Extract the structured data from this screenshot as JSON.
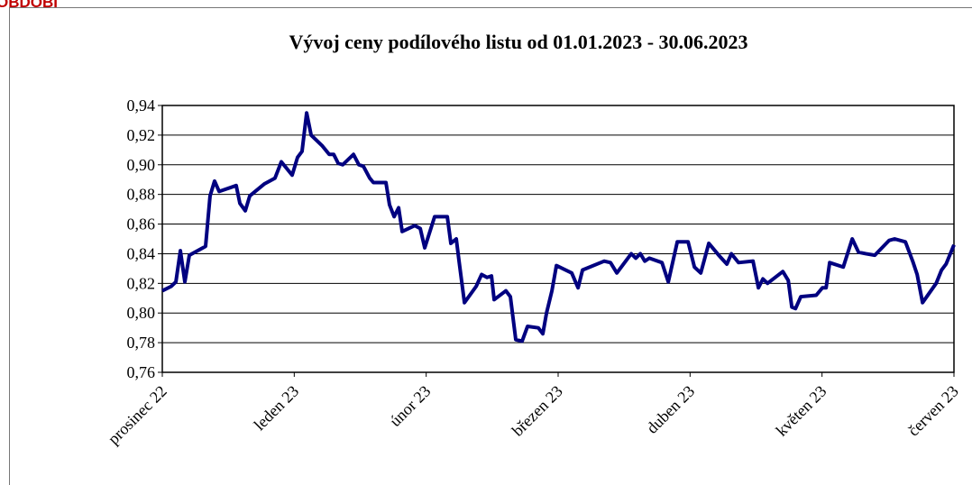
{
  "header": "OBDOBÍ",
  "chart_data": {
    "type": "line",
    "title": "Vývoj ceny podílového listu od 01.01.2023 - 30.06.2023",
    "xlim": [
      0,
      6
    ],
    "xticks": [
      {
        "value": 0,
        "label": "prosinec 22"
      },
      {
        "value": 1,
        "label": "leden 23"
      },
      {
        "value": 2,
        "label": "únor 23"
      },
      {
        "value": 3,
        "label": "březen 23"
      },
      {
        "value": 4,
        "label": "duben 23"
      },
      {
        "value": 5,
        "label": "květen 23"
      },
      {
        "value": 6,
        "label": "červen 23"
      }
    ],
    "ylim": [
      0.76,
      0.94
    ],
    "yticks": [
      {
        "value": 0.76,
        "label": "0,76"
      },
      {
        "value": 0.78,
        "label": "0,78"
      },
      {
        "value": 0.8,
        "label": "0,80"
      },
      {
        "value": 0.82,
        "label": "0,82"
      },
      {
        "value": 0.84,
        "label": "0,84"
      },
      {
        "value": 0.86,
        "label": "0,86"
      },
      {
        "value": 0.88,
        "label": "0,88"
      },
      {
        "value": 0.9,
        "label": "0,90"
      },
      {
        "value": 0.92,
        "label": "0,92"
      },
      {
        "value": 0.94,
        "label": "0,94"
      }
    ],
    "grid": true,
    "color": "#000080",
    "x": [
      0,
      0.068,
      0.103,
      0.137,
      0.171,
      0.205,
      0.328,
      0.362,
      0.396,
      0.431,
      0.56,
      0.588,
      0.629,
      0.663,
      0.772,
      0.813,
      0.854,
      0.902,
      0.984,
      1.025,
      1.059,
      1.094,
      1.128,
      1.21,
      1.265,
      1.299,
      1.333,
      1.367,
      1.449,
      1.49,
      1.524,
      1.572,
      1.6,
      1.695,
      1.722,
      1.757,
      1.791,
      1.818,
      1.914,
      1.955,
      1.989,
      2.064,
      2.16,
      2.187,
      2.228,
      2.249,
      2.29,
      2.379,
      2.42,
      2.461,
      2.495,
      2.515,
      2.604,
      2.638,
      2.679,
      2.727,
      2.768,
      2.85,
      2.884,
      2.912,
      2.953,
      2.987,
      3.103,
      3.151,
      3.185,
      3.349,
      3.397,
      3.445,
      3.554,
      3.589,
      3.623,
      3.657,
      3.691,
      3.787,
      3.835,
      3.903,
      3.985,
      4.033,
      4.081,
      4.142,
      4.217,
      4.279,
      4.313,
      4.367,
      4.477,
      4.518,
      4.552,
      4.587,
      4.703,
      4.744,
      4.771,
      4.799,
      4.839,
      4.956,
      5.003,
      5.031,
      5.058,
      5.161,
      5.229,
      5.277,
      5.332,
      5.4,
      5.509,
      5.55,
      5.632,
      5.687,
      5.721,
      5.762,
      5.865,
      5.906,
      5.94,
      6
    ],
    "values": [
      0.815,
      0.818,
      0.821,
      0.842,
      0.821,
      0.839,
      0.845,
      0.879,
      0.889,
      0.882,
      0.886,
      0.874,
      0.869,
      0.879,
      0.887,
      0.889,
      0.891,
      0.902,
      0.893,
      0.905,
      0.909,
      0.935,
      0.92,
      0.913,
      0.907,
      0.907,
      0.901,
      0.9,
      0.907,
      0.9,
      0.899,
      0.891,
      0.888,
      0.888,
      0.873,
      0.865,
      0.871,
      0.855,
      0.859,
      0.857,
      0.844,
      0.865,
      0.865,
      0.847,
      0.85,
      0.835,
      0.807,
      0.818,
      0.826,
      0.824,
      0.825,
      0.809,
      0.815,
      0.811,
      0.782,
      0.781,
      0.791,
      0.79,
      0.786,
      0.8,
      0.815,
      0.832,
      0.827,
      0.817,
      0.829,
      0.835,
      0.834,
      0.827,
      0.84,
      0.837,
      0.84,
      0.835,
      0.837,
      0.834,
      0.821,
      0.848,
      0.848,
      0.831,
      0.827,
      0.847,
      0.839,
      0.833,
      0.84,
      0.834,
      0.835,
      0.817,
      0.823,
      0.82,
      0.828,
      0.822,
      0.804,
      0.803,
      0.811,
      0.812,
      0.817,
      0.817,
      0.834,
      0.831,
      0.85,
      0.841,
      0.84,
      0.839,
      0.849,
      0.85,
      0.848,
      0.835,
      0.826,
      0.807,
      0.82,
      0.829,
      0.833,
      0.846
    ]
  }
}
